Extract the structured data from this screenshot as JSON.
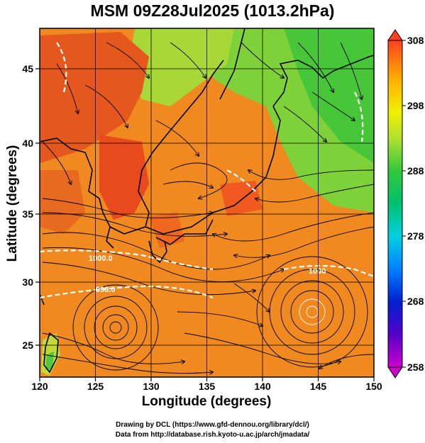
{
  "title": "MSM 09Z28Jul2025 (1013.2hPa)",
  "xlabel": "Longitude (degrees)",
  "ylabel": "Latitude  (degrees)",
  "x_ticks": [
    "120",
    "125",
    "130",
    "135",
    "140",
    "145",
    "150"
  ],
  "y_ticks": [
    "25",
    "30",
    "35",
    "40",
    "45"
  ],
  "colorbar_ticks": [
    "308",
    "298",
    "288",
    "278",
    "268",
    "258"
  ],
  "contour_labels": [
    "1000.0",
    "1000",
    "998.0"
  ],
  "credit_line1": "Drawing by DCL (https://www.gfd-dennou.org/library/dcl/)",
  "credit_line2": "Data from http://database.rish.kyoto-u.ac.jp/arch/jmadata/",
  "map_extent": {
    "lon": [
      120,
      150
    ],
    "lat": [
      22.4,
      47.6
    ]
  },
  "colorbar_range": [
    258,
    308
  ],
  "typhoons": [
    {
      "name": "west-cyclone",
      "lon": 127.5,
      "lat": 26.8
    },
    {
      "name": "east-cyclone",
      "lon": 144.3,
      "lat": 28.3
    }
  ],
  "colors": {
    "warm": "#f0891f",
    "hot": "#e84a1e",
    "mild": "#a8d838",
    "cool": "#30c83a",
    "contour": "#ffffff"
  }
}
